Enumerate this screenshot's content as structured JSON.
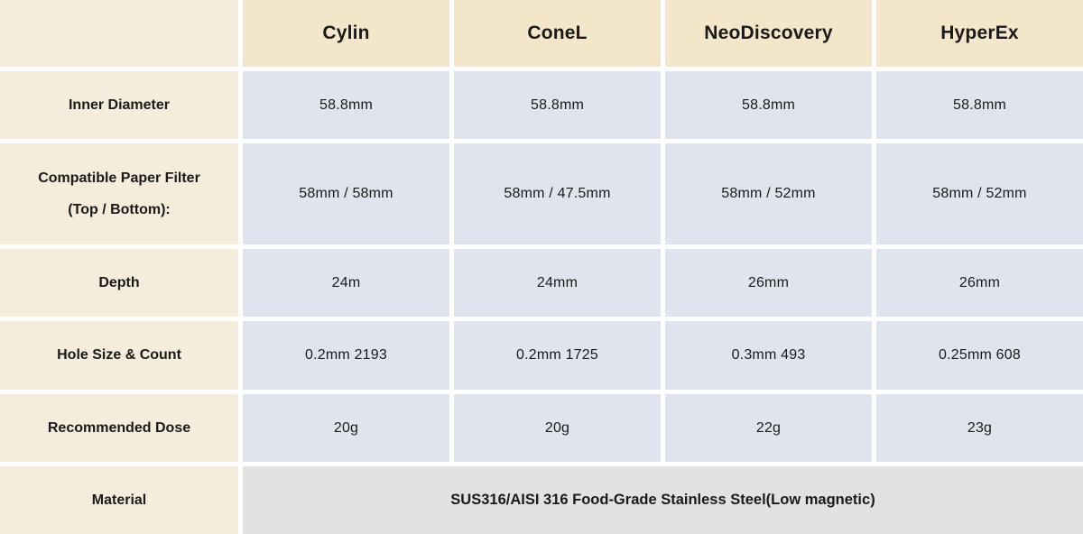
{
  "products": [
    "Cylin",
    "ConeL",
    "NeoDiscovery",
    "HyperEx"
  ],
  "rows": [
    {
      "label": "Inner Diameter",
      "label_line2": "",
      "values": [
        "58.8mm",
        "58.8mm",
        "58.8mm",
        "58.8mm"
      ]
    },
    {
      "label": "Compatible Paper Filter",
      "label_line2": "(Top / Bottom):",
      "values": [
        "58mm / 58mm",
        "58mm / 47.5mm",
        "58mm / 52mm",
        "58mm / 52mm"
      ]
    },
    {
      "label": "Depth",
      "label_line2": "",
      "values": [
        "24m",
        "24mm",
        "26mm",
        "26mm"
      ]
    },
    {
      "label": "Hole Size & Count",
      "label_line2": "",
      "values": [
        "0.2mm 2193",
        "0.2mm 1725",
        "0.3mm 493",
        "0.25mm 608"
      ]
    },
    {
      "label": "Recommended Dose",
      "label_line2": "",
      "values": [
        "20g",
        "20g",
        "22g",
        "23g"
      ]
    }
  ],
  "material_row": {
    "label": "Material",
    "value": "SUS316/AISI 316 Food-Grade Stainless Steel(Low magnetic)"
  },
  "colors": {
    "header_bg": "#f4e6c9",
    "label_bg": "#f5ecdc",
    "cell_bg": "#e0e4ee",
    "material_bg": "#e2e2e0",
    "gutter": "#ffffff",
    "text": "#1a1a1a"
  },
  "chart_data": {
    "type": "table",
    "columns": [
      "",
      "Cylin",
      "ConeL",
      "NeoDiscovery",
      "HyperEx"
    ],
    "rows": [
      [
        "Inner Diameter",
        "58.8mm",
        "58.8mm",
        "58.8mm",
        "58.8mm"
      ],
      [
        "Compatible Paper Filter (Top / Bottom):",
        "58mm / 58mm",
        "58mm / 47.5mm",
        "58mm / 52mm",
        "58mm / 52mm"
      ],
      [
        "Depth",
        "24m",
        "24mm",
        "26mm",
        "26mm"
      ],
      [
        "Hole Size & Count",
        "0.2mm 2193",
        "0.2mm 1725",
        "0.3mm 493",
        "0.25mm 608"
      ],
      [
        "Recommended Dose",
        "20g",
        "20g",
        "22g",
        "23g"
      ],
      [
        "Material",
        "SUS316/AISI 316 Food-Grade Stainless Steel(Low magnetic)",
        "",
        "",
        ""
      ]
    ]
  }
}
